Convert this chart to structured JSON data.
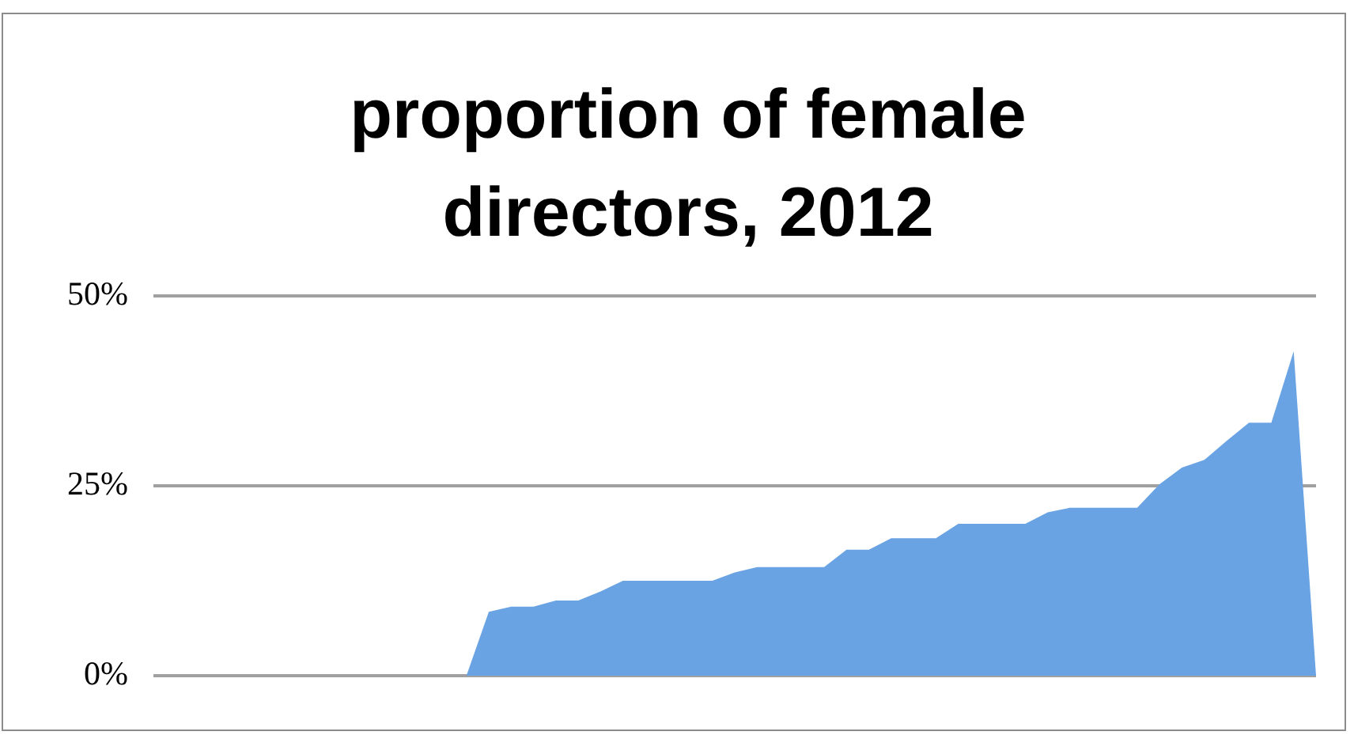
{
  "chart_data": {
    "type": "area",
    "title": "proportion of female directors, 2012",
    "categories": [
      null,
      null,
      null,
      null,
      null,
      null,
      null,
      null,
      null,
      null,
      null,
      null,
      null,
      null,
      null,
      null,
      null,
      null,
      null,
      null,
      null,
      null,
      null,
      null,
      null,
      null,
      null,
      null,
      null,
      null,
      null,
      null,
      null,
      null,
      null,
      null,
      null,
      null,
      null,
      null,
      null,
      null,
      null,
      null,
      null,
      null,
      null,
      null,
      null,
      null,
      null,
      null,
      null
    ],
    "values": [
      0,
      0,
      0,
      0,
      0,
      0,
      0,
      0,
      0,
      0,
      0,
      0,
      0,
      0,
      0,
      8.4,
      9.1,
      9.1,
      9.9,
      9.9,
      11.1,
      12.5,
      12.5,
      12.5,
      12.5,
      12.5,
      13.6,
      14.3,
      14.3,
      14.3,
      14.3,
      16.6,
      16.6,
      18.1,
      18.1,
      18.1,
      20.0,
      20.0,
      20.0,
      20.0,
      21.5,
      22.1,
      22.1,
      22.1,
      22.1,
      25.2,
      27.4,
      28.4,
      30.9,
      33.3,
      33.3,
      42.7,
      0
    ],
    "color": "#6aa3e3",
    "ylim": [
      0,
      50
    ],
    "yticks": [
      {
        "value": 0,
        "label": "0%"
      },
      {
        "value": 25,
        "label": "25%"
      },
      {
        "value": 50,
        "label": "50%"
      }
    ],
    "grid": "y",
    "tick_labels": "y",
    "legend": false
  }
}
